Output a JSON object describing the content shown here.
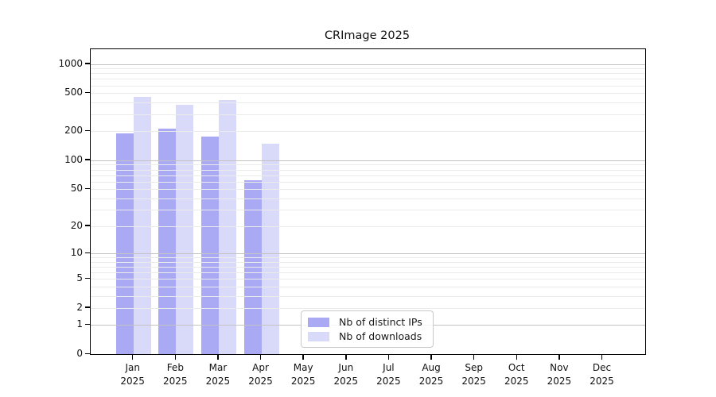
{
  "chart_data": {
    "type": "bar",
    "title": "CRImage 2025",
    "y_scale": "log10(value+1)",
    "grid": true,
    "legend_position": "bottom-center",
    "categories": [
      "Jan",
      "Feb",
      "Mar",
      "Apr",
      "May",
      "Jun",
      "Jul",
      "Aug",
      "Sep",
      "Oct",
      "Nov",
      "Dec"
    ],
    "category_year": "2025",
    "series": [
      {
        "name": "Nb of distinct IPs",
        "color": "#a9a9f4",
        "values": [
          190,
          215,
          175,
          62,
          0,
          0,
          0,
          0,
          0,
          0,
          0,
          0
        ]
      },
      {
        "name": "Nb of downloads",
        "color": "#d9d9f9",
        "values": [
          460,
          380,
          420,
          150,
          0,
          0,
          0,
          0,
          0,
          0,
          0,
          0
        ]
      }
    ],
    "yticks": [
      1000,
      500,
      200,
      100,
      50,
      20,
      10,
      5,
      2,
      1,
      0
    ],
    "ylim": [
      0,
      1400
    ]
  }
}
